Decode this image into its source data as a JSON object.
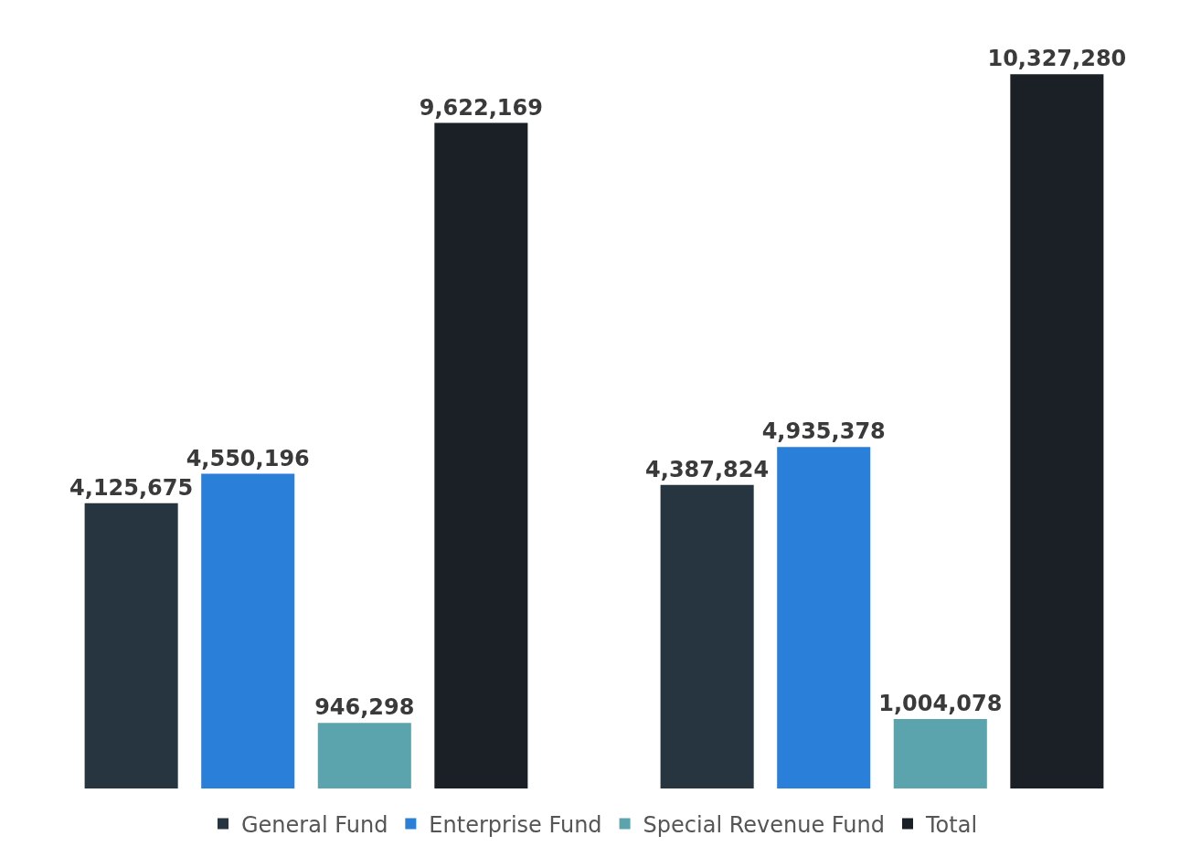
{
  "chart_data": {
    "type": "bar",
    "categories": [
      null,
      null
    ],
    "series": [
      {
        "name": "General Fund",
        "color": "#263540",
        "values": [
          4125675,
          4387824
        ],
        "value_labels": [
          "4,125,675",
          "4,387,824"
        ]
      },
      {
        "name": "Enterprise Fund",
        "color": "#2a7fd9",
        "values": [
          4550196,
          4935378
        ],
        "value_labels": [
          "4,550,196",
          "4,935,378"
        ]
      },
      {
        "name": "Special Revenue Fund",
        "color": "#5ba3ad",
        "values": [
          946298,
          1004078
        ],
        "value_labels": [
          "946,298",
          "1,004,078"
        ]
      },
      {
        "name": "Total",
        "color": "#1b2027",
        "values": [
          9622169,
          10327280
        ],
        "value_labels": [
          "9,622,169",
          "10,327,280"
        ]
      }
    ],
    "grid": false,
    "legend": "bottom"
  }
}
